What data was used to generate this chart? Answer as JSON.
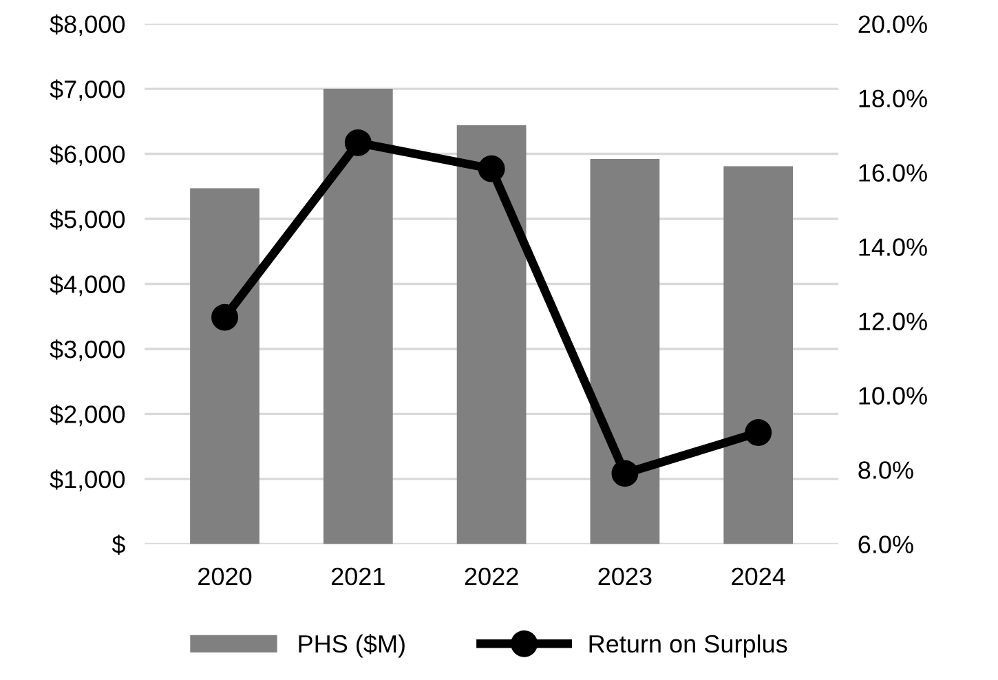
{
  "chart_data": {
    "type": "bar",
    "categories": [
      "2020",
      "2021",
      "2022",
      "2023",
      "2024"
    ],
    "series": [
      {
        "name": "PHS ($M)",
        "color": "#808080",
        "values": [
          5470,
          7000,
          6440,
          5920,
          5810
        ]
      },
      {
        "name": "Return on Surplus",
        "type": "line",
        "axis": "y2",
        "color": "#000000",
        "marker": "circle",
        "values": [
          12.1,
          16.8,
          16.1,
          7.9,
          9.0
        ]
      }
    ],
    "ylim": [
      0,
      8000
    ],
    "yticks": [
      {
        "value": 0,
        "label": "$"
      },
      {
        "value": 1000,
        "label": "$1,000"
      },
      {
        "value": 2000,
        "label": "$2,000"
      },
      {
        "value": 3000,
        "label": "$3,000"
      },
      {
        "value": 4000,
        "label": "$4,000"
      },
      {
        "value": 5000,
        "label": "$5,000"
      },
      {
        "value": 6000,
        "label": "$6,000"
      },
      {
        "value": 7000,
        "label": "$7,000"
      },
      {
        "value": 8000,
        "label": "$8,000"
      }
    ],
    "y2lim": [
      6,
      20
    ],
    "y2ticks": [
      {
        "value": 6,
        "label": "6.0%"
      },
      {
        "value": 8,
        "label": "8.0%"
      },
      {
        "value": 10,
        "label": "10.0%"
      },
      {
        "value": 12,
        "label": "12.0%"
      },
      {
        "value": 14,
        "label": "14.0%"
      },
      {
        "value": 16,
        "label": "16.0%"
      },
      {
        "value": 18,
        "label": "18.0%"
      },
      {
        "value": 20,
        "label": "20.0%"
      }
    ],
    "grid": "y",
    "legend": "bottom"
  }
}
